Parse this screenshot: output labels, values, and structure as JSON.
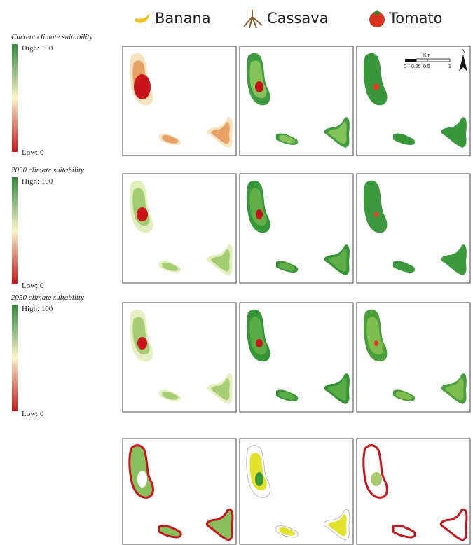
{
  "header": {
    "crops": [
      "Banana",
      "Cassava",
      "Tomato"
    ]
  },
  "legends": [
    {
      "title": "Current climate suitability",
      "high": "High: 100",
      "low": "Low: 0"
    },
    {
      "title": "2030 climate suitability",
      "high": "High: 100",
      "low": "Low: 0"
    },
    {
      "title": "2050 climate suitability",
      "high": "High: 100",
      "low": "Low: 0"
    }
  ],
  "scale_bar": {
    "unit": "Km",
    "ticks": [
      "0",
      "0.25",
      "0.5",
      "1"
    ],
    "north": "N"
  }
}
